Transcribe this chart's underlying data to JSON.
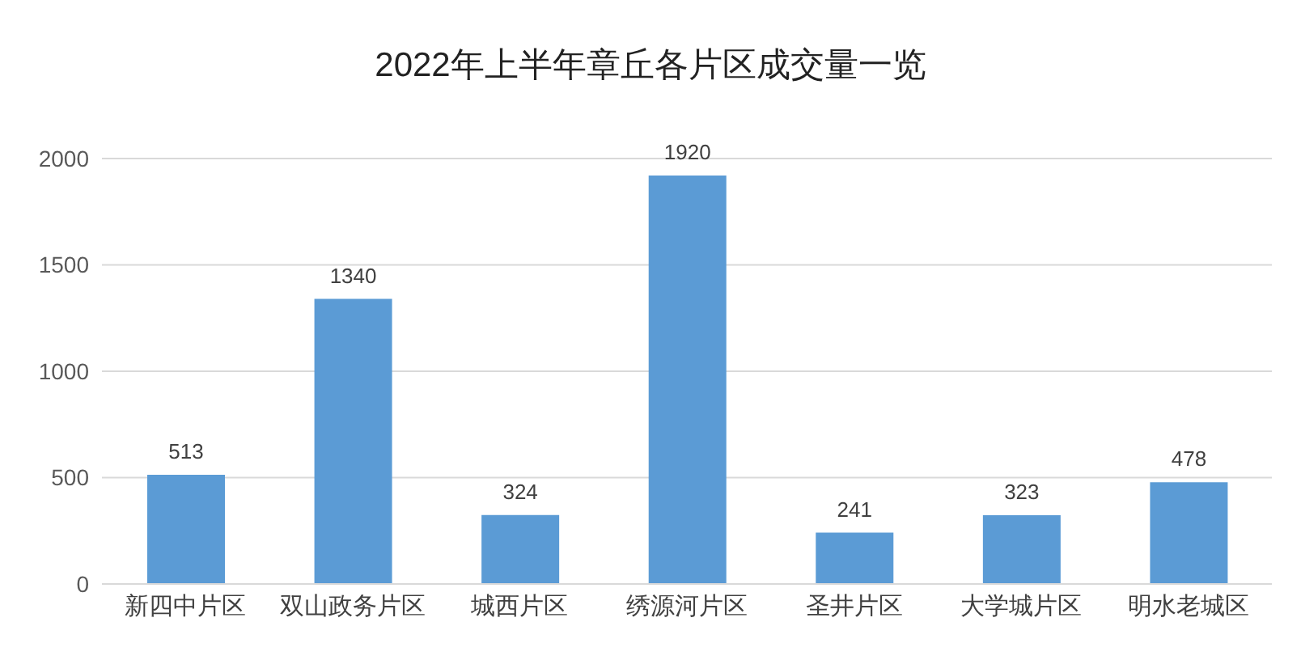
{
  "chart_data": {
    "type": "bar",
    "title": "2022年上半年章丘各片区成交量一览",
    "categories": [
      "新四中片区",
      "双山政务片区",
      "城西片区",
      "绣源河片区",
      "圣井片区",
      "大学城片区",
      "明水老城区"
    ],
    "values": [
      513,
      1340,
      324,
      1920,
      241,
      323,
      478
    ],
    "color": "#5b9bd5",
    "ylim": [
      0,
      2000
    ],
    "yticks": [
      0,
      500,
      1000,
      1500,
      2000
    ],
    "grid": "y",
    "data_labels": true
  }
}
